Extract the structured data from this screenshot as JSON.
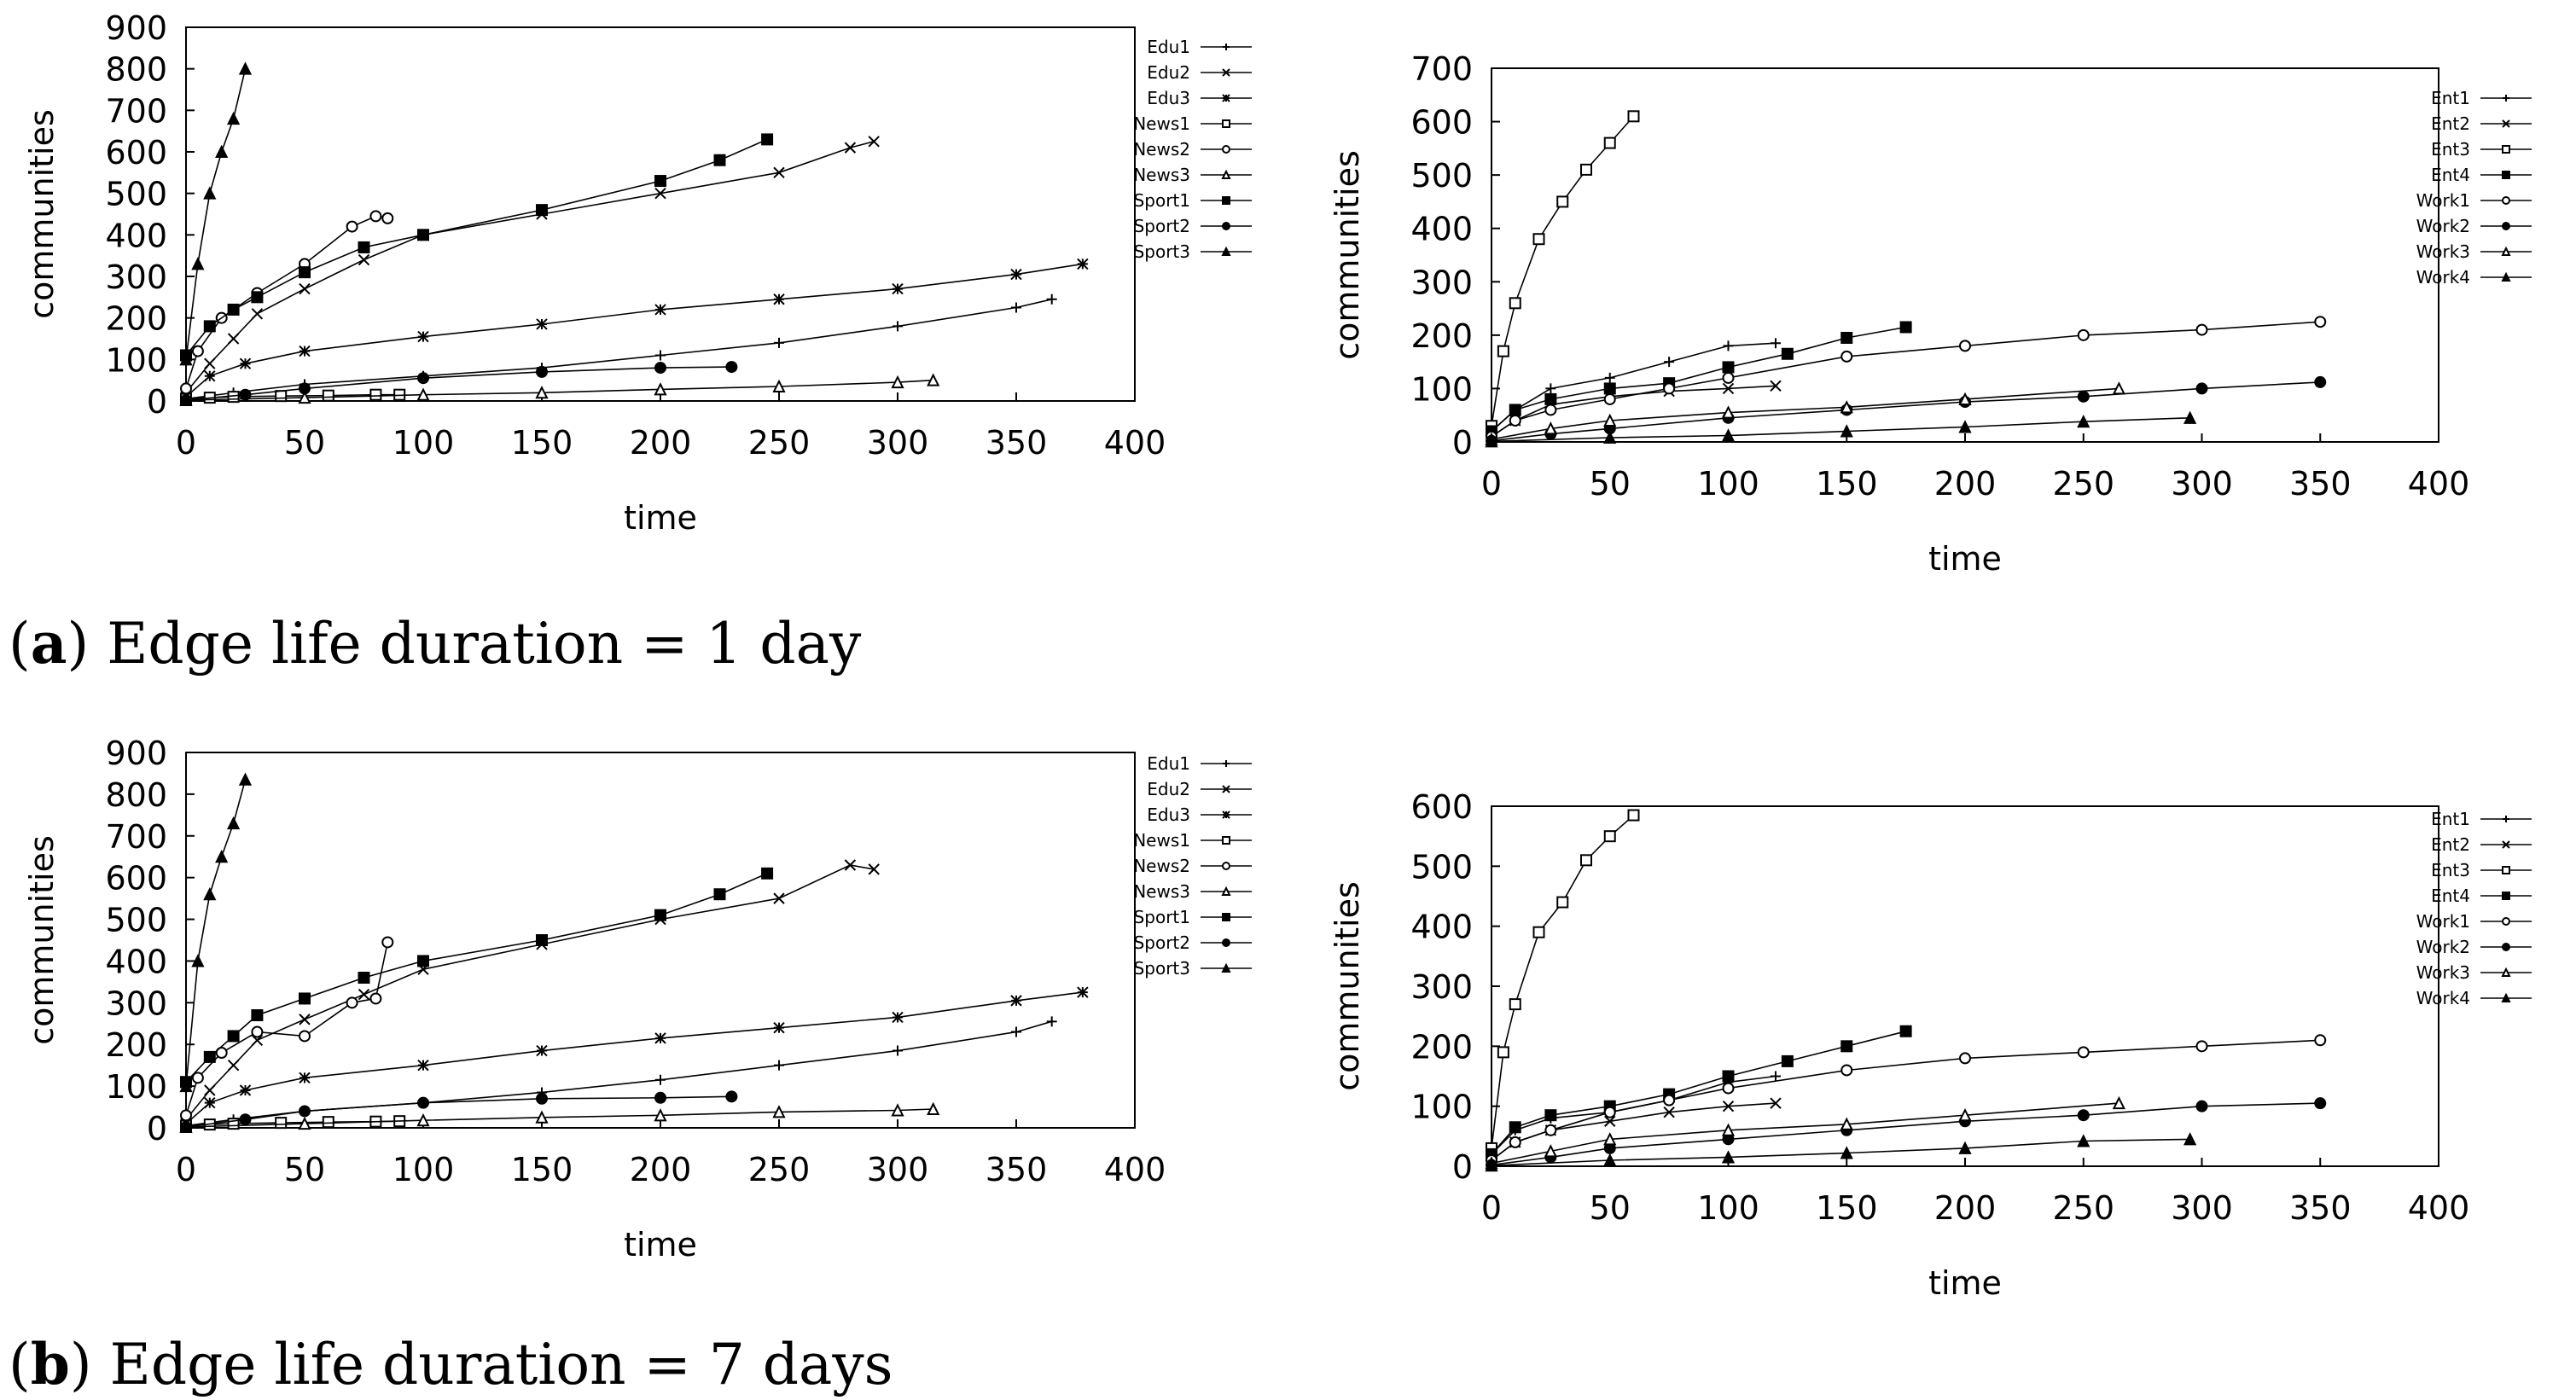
{
  "captions": [
    {
      "letter": "a",
      "text": "Edge life duration = 1 day"
    },
    {
      "letter": "b",
      "text": "Edge life duration = 7 days"
    }
  ],
  "chart_data": [
    {
      "type": "line",
      "title": "",
      "xlabel": "time",
      "ylabel": "communities",
      "xlim": [
        0,
        400
      ],
      "ylim": [
        0,
        900
      ],
      "xticks": [
        0,
        50,
        100,
        150,
        200,
        250,
        300,
        350,
        400
      ],
      "yticks": [
        0,
        100,
        200,
        300,
        400,
        500,
        600,
        700,
        800,
        900
      ],
      "legend": "right",
      "series": [
        {
          "name": "Edu1",
          "marker": "plus",
          "x": [
            0,
            20,
            50,
            100,
            150,
            200,
            250,
            300,
            350,
            365
          ],
          "values": [
            5,
            20,
            40,
            60,
            80,
            110,
            140,
            180,
            225,
            245
          ]
        },
        {
          "name": "Edu2",
          "marker": "x",
          "x": [
            0,
            10,
            20,
            30,
            50,
            75,
            100,
            150,
            200,
            250,
            280,
            290
          ],
          "values": [
            20,
            90,
            150,
            210,
            270,
            340,
            400,
            450,
            500,
            550,
            610,
            625
          ]
        },
        {
          "name": "Edu3",
          "marker": "star",
          "x": [
            0,
            10,
            25,
            50,
            100,
            150,
            200,
            250,
            300,
            350,
            378
          ],
          "values": [
            10,
            60,
            90,
            120,
            155,
            185,
            220,
            245,
            270,
            305,
            330
          ]
        },
        {
          "name": "News1",
          "marker": "square-open",
          "x": [
            0,
            10,
            20,
            40,
            60,
            80,
            90
          ],
          "values": [
            5,
            8,
            10,
            12,
            13,
            15,
            15
          ]
        },
        {
          "name": "News2",
          "marker": "circle-open",
          "x": [
            0,
            5,
            15,
            30,
            50,
            70,
            80,
            85
          ],
          "values": [
            30,
            120,
            200,
            260,
            330,
            420,
            445,
            440
          ]
        },
        {
          "name": "News3",
          "marker": "triangle-open",
          "x": [
            0,
            50,
            100,
            150,
            200,
            250,
            300,
            315
          ],
          "values": [
            2,
            8,
            15,
            20,
            28,
            35,
            45,
            50
          ]
        },
        {
          "name": "Sport1",
          "marker": "square",
          "x": [
            0,
            10,
            20,
            30,
            50,
            75,
            100,
            150,
            200,
            225,
            245
          ],
          "values": [
            110,
            180,
            220,
            250,
            310,
            370,
            400,
            460,
            530,
            580,
            630
          ]
        },
        {
          "name": "Sport2",
          "marker": "circle",
          "x": [
            0,
            25,
            50,
            100,
            150,
            200,
            230
          ],
          "values": [
            2,
            15,
            30,
            55,
            70,
            80,
            82
          ]
        },
        {
          "name": "Sport3",
          "marker": "triangle",
          "x": [
            0,
            5,
            10,
            15,
            20,
            25
          ],
          "values": [
            100,
            330,
            500,
            600,
            680,
            800
          ]
        }
      ]
    },
    {
      "type": "line",
      "title": "",
      "xlabel": "time",
      "ylabel": "communities",
      "xlim": [
        0,
        400
      ],
      "ylim": [
        0,
        700
      ],
      "xticks": [
        0,
        50,
        100,
        150,
        200,
        250,
        300,
        350,
        400
      ],
      "yticks": [
        0,
        100,
        200,
        300,
        400,
        500,
        600,
        700
      ],
      "legend": "right",
      "series": [
        {
          "name": "Ent1",
          "marker": "plus",
          "x": [
            0,
            10,
            25,
            50,
            75,
            100,
            120
          ],
          "values": [
            20,
            60,
            100,
            120,
            150,
            180,
            185
          ]
        },
        {
          "name": "Ent2",
          "marker": "x",
          "x": [
            0,
            10,
            25,
            50,
            75,
            100,
            120
          ],
          "values": [
            10,
            40,
            70,
            85,
            95,
            100,
            105
          ]
        },
        {
          "name": "Ent3",
          "marker": "square-open",
          "x": [
            0,
            5,
            10,
            20,
            30,
            40,
            50,
            60
          ],
          "values": [
            30,
            170,
            260,
            380,
            450,
            510,
            560,
            610
          ]
        },
        {
          "name": "Ent4",
          "marker": "square",
          "x": [
            0,
            10,
            25,
            50,
            75,
            100,
            125,
            150,
            175
          ],
          "values": [
            20,
            60,
            80,
            100,
            110,
            140,
            165,
            195,
            215
          ]
        },
        {
          "name": "Work1",
          "marker": "circle-open",
          "x": [
            0,
            10,
            25,
            50,
            75,
            100,
            150,
            200,
            250,
            300,
            350
          ],
          "values": [
            10,
            40,
            60,
            80,
            100,
            120,
            160,
            180,
            200,
            210,
            225
          ]
        },
        {
          "name": "Work2",
          "marker": "circle",
          "x": [
            0,
            25,
            50,
            100,
            150,
            200,
            250,
            300,
            350
          ],
          "values": [
            2,
            15,
            25,
            45,
            60,
            75,
            85,
            100,
            112
          ]
        },
        {
          "name": "Work3",
          "marker": "triangle-open",
          "x": [
            0,
            25,
            50,
            100,
            150,
            200,
            265
          ],
          "values": [
            5,
            25,
            40,
            55,
            65,
            80,
            100
          ]
        },
        {
          "name": "Work4",
          "marker": "triangle",
          "x": [
            0,
            50,
            100,
            150,
            200,
            250,
            295
          ],
          "values": [
            1,
            8,
            12,
            20,
            28,
            38,
            45
          ]
        }
      ]
    },
    {
      "type": "line",
      "title": "",
      "xlabel": "time",
      "ylabel": "communities",
      "xlim": [
        0,
        400
      ],
      "ylim": [
        0,
        900
      ],
      "xticks": [
        0,
        50,
        100,
        150,
        200,
        250,
        300,
        350,
        400
      ],
      "yticks": [
        0,
        100,
        200,
        300,
        400,
        500,
        600,
        700,
        800,
        900
      ],
      "legend": "right",
      "series": [
        {
          "name": "Edu1",
          "marker": "plus",
          "x": [
            0,
            20,
            50,
            100,
            150,
            200,
            250,
            300,
            350,
            365
          ],
          "values": [
            5,
            20,
            40,
            60,
            85,
            115,
            150,
            185,
            230,
            255
          ]
        },
        {
          "name": "Edu2",
          "marker": "x",
          "x": [
            0,
            10,
            20,
            30,
            50,
            75,
            100,
            150,
            200,
            250,
            280,
            290
          ],
          "values": [
            20,
            90,
            150,
            210,
            260,
            320,
            380,
            440,
            500,
            550,
            630,
            620
          ]
        },
        {
          "name": "Edu3",
          "marker": "star",
          "x": [
            0,
            10,
            25,
            50,
            100,
            150,
            200,
            250,
            300,
            350,
            378
          ],
          "values": [
            10,
            60,
            90,
            120,
            150,
            185,
            215,
            240,
            265,
            305,
            325
          ]
        },
        {
          "name": "News1",
          "marker": "square-open",
          "x": [
            0,
            10,
            20,
            40,
            60,
            80,
            90
          ],
          "values": [
            5,
            8,
            10,
            12,
            14,
            15,
            16
          ]
        },
        {
          "name": "News2",
          "marker": "circle-open",
          "x": [
            0,
            5,
            15,
            30,
            50,
            70,
            80,
            85
          ],
          "values": [
            30,
            120,
            180,
            230,
            220,
            300,
            310,
            445
          ]
        },
        {
          "name": "News3",
          "marker": "triangle-open",
          "x": [
            0,
            50,
            100,
            150,
            200,
            250,
            300,
            315
          ],
          "values": [
            2,
            10,
            18,
            25,
            30,
            38,
            42,
            45
          ]
        },
        {
          "name": "Sport1",
          "marker": "square",
          "x": [
            0,
            10,
            20,
            30,
            50,
            75,
            100,
            150,
            200,
            225,
            245
          ],
          "values": [
            110,
            170,
            220,
            270,
            310,
            360,
            400,
            450,
            510,
            560,
            610
          ]
        },
        {
          "name": "Sport2",
          "marker": "circle",
          "x": [
            0,
            25,
            50,
            100,
            150,
            200,
            230
          ],
          "values": [
            2,
            20,
            40,
            60,
            70,
            72,
            75
          ]
        },
        {
          "name": "Sport3",
          "marker": "triangle",
          "x": [
            0,
            5,
            10,
            15,
            20,
            25
          ],
          "values": [
            100,
            400,
            560,
            650,
            730,
            835
          ]
        }
      ]
    },
    {
      "type": "line",
      "title": "",
      "xlabel": "time",
      "ylabel": "communities",
      "xlim": [
        0,
        400
      ],
      "ylim": [
        0,
        600
      ],
      "xticks": [
        0,
        50,
        100,
        150,
        200,
        250,
        300,
        350,
        400
      ],
      "yticks": [
        0,
        100,
        200,
        300,
        400,
        500,
        600
      ],
      "legend": "right",
      "series": [
        {
          "name": "Ent1",
          "marker": "plus",
          "x": [
            0,
            10,
            25,
            50,
            75,
            100,
            120
          ],
          "values": [
            20,
            60,
            80,
            90,
            110,
            140,
            150
          ]
        },
        {
          "name": "Ent2",
          "marker": "x",
          "x": [
            0,
            10,
            25,
            50,
            75,
            100,
            120
          ],
          "values": [
            10,
            40,
            60,
            75,
            90,
            100,
            105
          ]
        },
        {
          "name": "Ent3",
          "marker": "square-open",
          "x": [
            0,
            5,
            10,
            20,
            30,
            40,
            50,
            60
          ],
          "values": [
            30,
            190,
            270,
            390,
            440,
            510,
            550,
            585
          ]
        },
        {
          "name": "Ent4",
          "marker": "square",
          "x": [
            0,
            10,
            25,
            50,
            75,
            100,
            125,
            150,
            175
          ],
          "values": [
            20,
            65,
            85,
            100,
            120,
            150,
            175,
            200,
            225
          ]
        },
        {
          "name": "Work1",
          "marker": "circle-open",
          "x": [
            0,
            10,
            25,
            50,
            75,
            100,
            150,
            200,
            250,
            300,
            350
          ],
          "values": [
            10,
            40,
            60,
            90,
            110,
            130,
            160,
            180,
            190,
            200,
            210
          ]
        },
        {
          "name": "Work2",
          "marker": "circle",
          "x": [
            0,
            25,
            50,
            100,
            150,
            200,
            250,
            300,
            350
          ],
          "values": [
            2,
            15,
            30,
            45,
            60,
            75,
            85,
            100,
            105
          ]
        },
        {
          "name": "Work3",
          "marker": "triangle-open",
          "x": [
            0,
            25,
            50,
            100,
            150,
            200,
            265
          ],
          "values": [
            5,
            25,
            45,
            60,
            70,
            85,
            105
          ]
        },
        {
          "name": "Work4",
          "marker": "triangle",
          "x": [
            0,
            50,
            100,
            150,
            200,
            250,
            295
          ],
          "values": [
            1,
            10,
            15,
            22,
            30,
            42,
            45
          ]
        }
      ]
    }
  ]
}
